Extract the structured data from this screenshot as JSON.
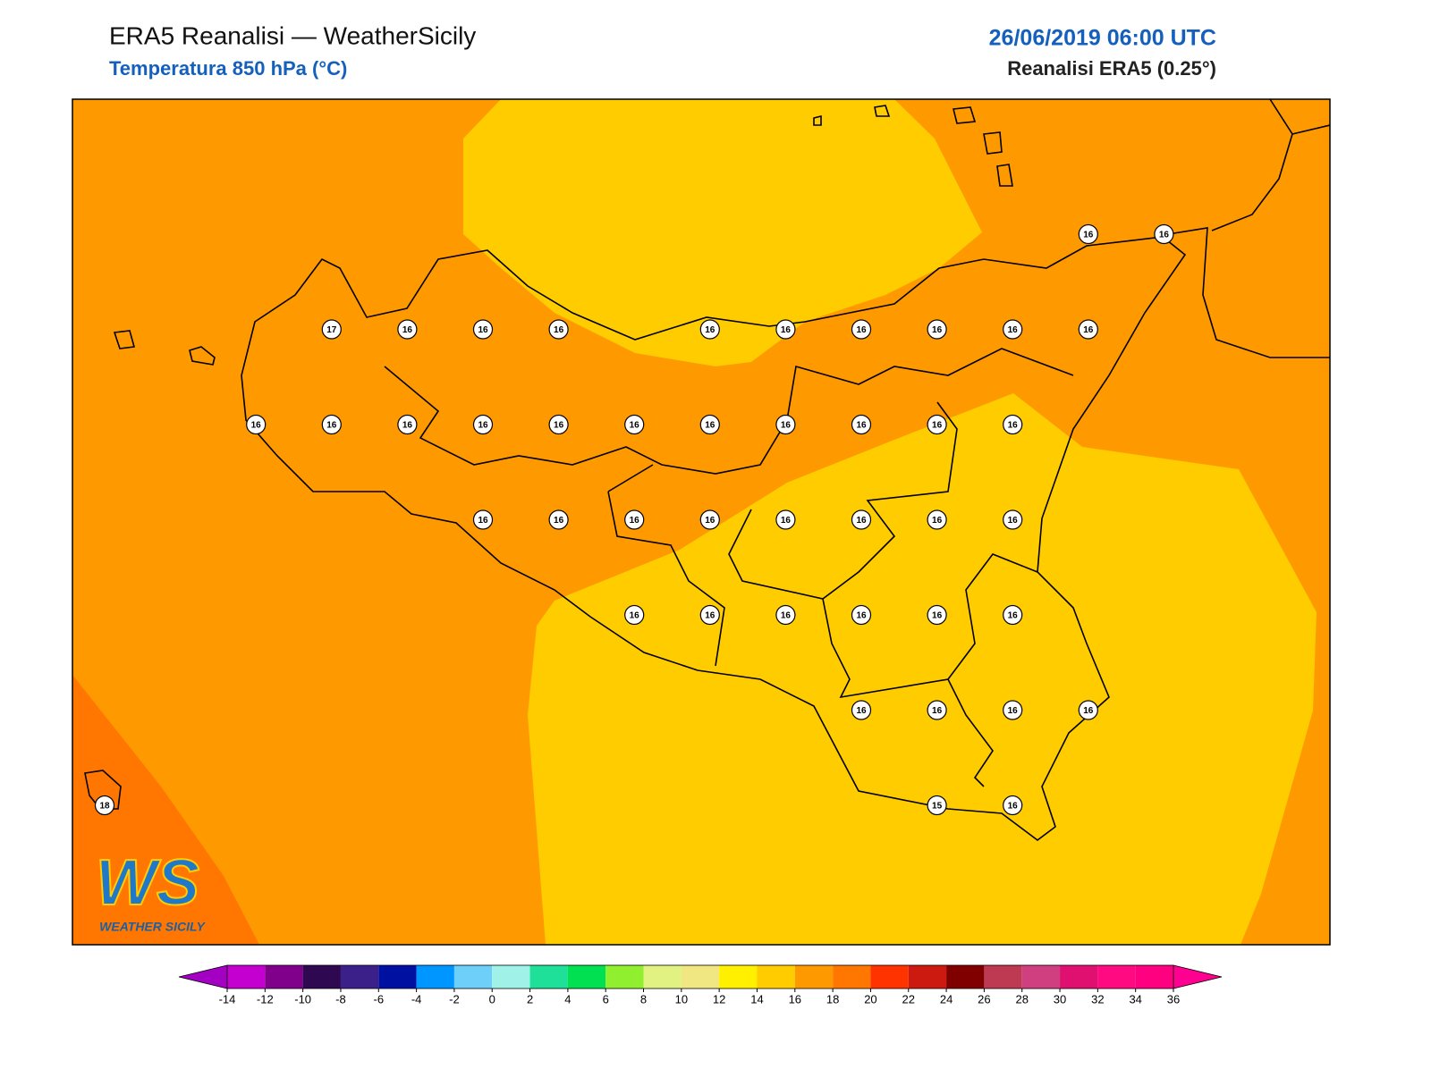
{
  "header": {
    "title": "ERA5 Reanalisi — WeatherSicily",
    "subtitle": "Temperatura 850 hPa (°C)",
    "date": "26/06/2019 06:00 UTC",
    "source": "Reanalisi ERA5 (0.25°)"
  },
  "logo": {
    "mark": "WS",
    "name": "WEATHER SICILY"
  },
  "stations": [
    {
      "value": 16
    },
    {
      "value": 16
    },
    {
      "value": 17
    },
    {
      "value": 16
    },
    {
      "value": 16
    },
    {
      "value": 16
    },
    {
      "value": 16
    },
    {
      "value": 16
    },
    {
      "value": 16
    },
    {
      "value": 16
    },
    {
      "value": 16
    },
    {
      "value": 16
    },
    {
      "value": 16
    },
    {
      "value": 16
    },
    {
      "value": 16
    },
    {
      "value": 16
    },
    {
      "value": 16
    },
    {
      "value": 16
    },
    {
      "value": 16
    },
    {
      "value": 16
    },
    {
      "value": 16
    },
    {
      "value": 16
    },
    {
      "value": 16
    },
    {
      "value": 16
    },
    {
      "value": 16
    },
    {
      "value": 16
    },
    {
      "value": 16
    },
    {
      "value": 16
    },
    {
      "value": 16
    },
    {
      "value": 16
    },
    {
      "value": 16
    },
    {
      "value": 16
    },
    {
      "value": 16
    },
    {
      "value": 16
    },
    {
      "value": 16
    },
    {
      "value": 16
    },
    {
      "value": 16
    },
    {
      "value": 16
    },
    {
      "value": 16
    },
    {
      "value": 16
    },
    {
      "value": 16
    },
    {
      "value": 18
    },
    {
      "value": 15
    },
    {
      "value": 16
    }
  ],
  "colorbar": {
    "ticks": [
      -14,
      -12,
      -10,
      -8,
      -6,
      -4,
      -2,
      0,
      2,
      4,
      6,
      8,
      10,
      12,
      14,
      16,
      18,
      20,
      22,
      24,
      26,
      28,
      30,
      32,
      34,
      36
    ],
    "under": "#a400c4",
    "colors": [
      "#c400d0",
      "#80008c",
      "#2e0850",
      "#3a2088",
      "#0010a0",
      "#0096ff",
      "#6ed0f8",
      "#a0f2e8",
      "#1ee098",
      "#00e050",
      "#90f030",
      "#e2f282",
      "#f0e682",
      "#fff000",
      "#ffcc00",
      "#ff9900",
      "#ff7700",
      "#ff3300",
      "#cc1a10",
      "#800000",
      "#be3a52",
      "#d04080",
      "#e01070",
      "#ff0a80",
      "#ff0080"
    ],
    "over": "#ff0090"
  }
}
